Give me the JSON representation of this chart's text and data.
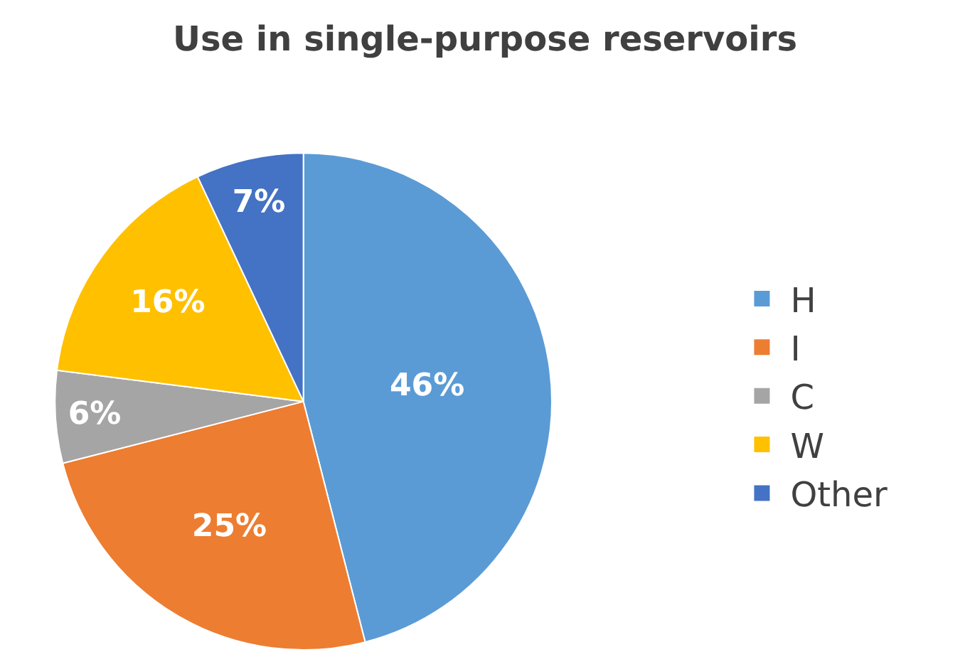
{
  "chart_data": {
    "type": "pie",
    "title": "Use in single-purpose reservoirs",
    "categories": [
      "H",
      "I",
      "C",
      "W",
      "Other"
    ],
    "values": [
      46,
      25,
      6,
      16,
      7
    ],
    "colors": [
      "#5b9bd5",
      "#ed7d31",
      "#a5a5a5",
      "#ffc000",
      "#4472c4"
    ],
    "value_labels": [
      "46%",
      "25%",
      "6%",
      "16%",
      "7%"
    ],
    "legend": "right"
  }
}
